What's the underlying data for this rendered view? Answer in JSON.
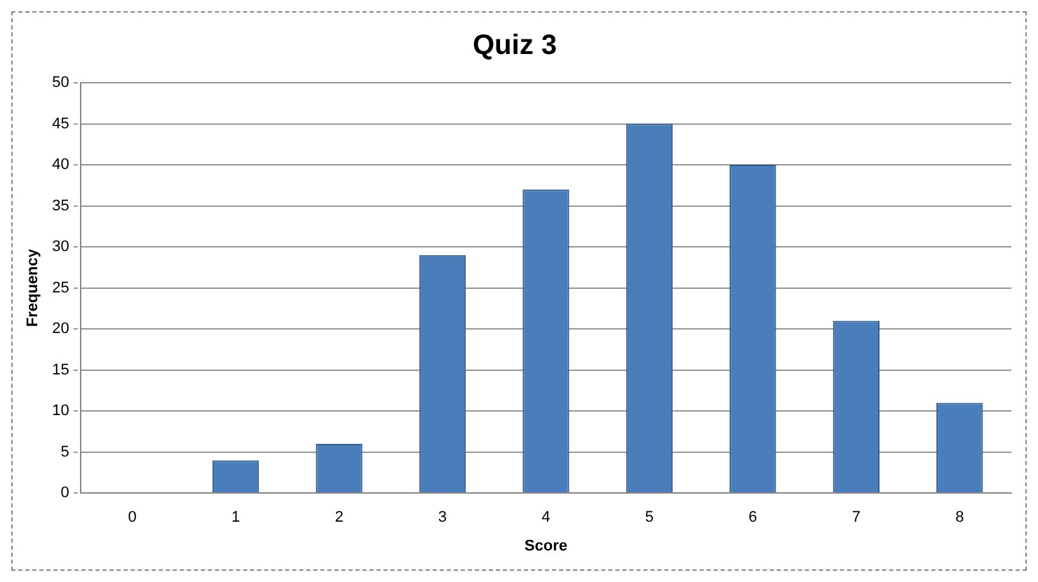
{
  "chart_data": {
    "type": "bar",
    "title": "Quiz 3",
    "xlabel": "Score",
    "ylabel": "Frequency",
    "categories": [
      "0",
      "1",
      "2",
      "3",
      "4",
      "5",
      "6",
      "7",
      "8"
    ],
    "values": [
      0,
      4,
      6,
      29,
      37,
      45,
      40,
      21,
      11
    ],
    "color": "#4a7ebb",
    "ylim": [
      0,
      50
    ],
    "yticks": [
      0,
      5,
      10,
      15,
      20,
      25,
      30,
      35,
      40,
      45,
      50
    ],
    "grid": "y",
    "legend": false
  }
}
